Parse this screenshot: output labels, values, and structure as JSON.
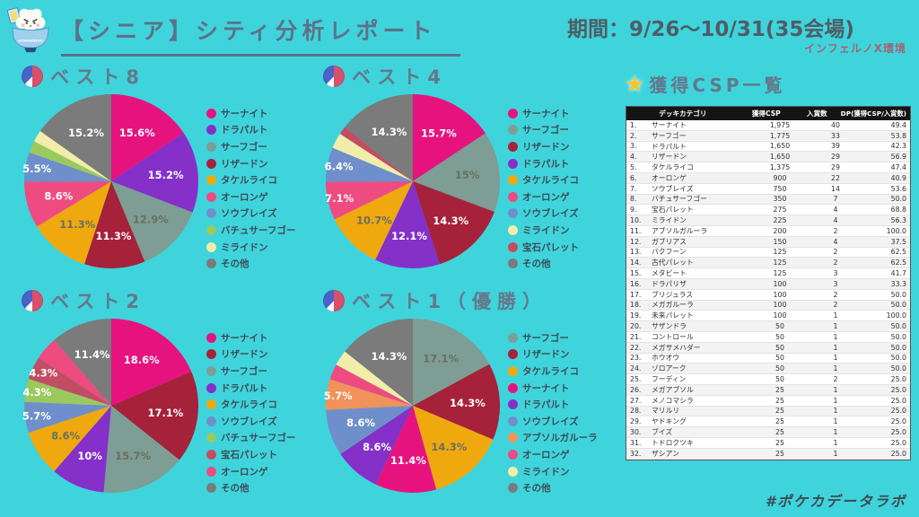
{
  "header": {
    "title": "【シニア】シティ分析レポート",
    "period": "期間：9/26〜10/31(35会場)",
    "environment": "インフェルノX環境"
  },
  "colors": {
    "background": "#3FD4DC",
    "title_text": "#5E7188",
    "period_text": "#4F5D66",
    "environment_text": "#A26472",
    "legend_text": "#3D4B55",
    "table_header_bg": "#141414",
    "table_header_text": "#FFFFFF",
    "footer_text": "#3E4A52",
    "star_icon": "#F6C52E",
    "deck_palette": {
      "サーナイト": "#E6137F",
      "ドラパルト": "#8430C9",
      "サーフゴー": "#7E9D94",
      "リザードン": "#A6213A",
      "タケルライコ": "#EFA90F",
      "オーロンゲ": "#EE4B81",
      "ソウブレイズ": "#6F8FCB",
      "バチュサーフゴー": "#9BC95E",
      "ミライドン": "#F2EDA9",
      "宝石パレット": "#C24D62",
      "アブソルガルーラ": "#F0925A",
      "その他": "#7B7B7B"
    }
  },
  "chart_data": [
    {
      "type": "pie",
      "title": "ベスト8",
      "slices": [
        {
          "name": "サーナイト",
          "value": 15.6,
          "label": "15.6%"
        },
        {
          "name": "ドラパルト",
          "value": 15.2,
          "label": "15.2%"
        },
        {
          "name": "サーフゴー",
          "value": 12.9,
          "label": "12.9%"
        },
        {
          "name": "リザードン",
          "value": 11.3,
          "label": "11.3%"
        },
        {
          "name": "タケルライコ",
          "value": 11.3,
          "label": "11.3%"
        },
        {
          "name": "オーロンゲ",
          "value": 8.6,
          "label": "8.6%"
        },
        {
          "name": "ソウブレイズ",
          "value": 5.5,
          "label": "5.5%"
        },
        {
          "name": "バチュサーフゴー",
          "value": 2.2,
          "label": ""
        },
        {
          "name": "ミライドン",
          "value": 2.2,
          "label": ""
        },
        {
          "name": "その他",
          "value": 15.2,
          "label": "15.2%"
        }
      ]
    },
    {
      "type": "pie",
      "title": "ベスト4",
      "slices": [
        {
          "name": "サーナイト",
          "value": 15.7,
          "label": "15.7%"
        },
        {
          "name": "サーフゴー",
          "value": 15.0,
          "label": "15%"
        },
        {
          "name": "リザードン",
          "value": 14.3,
          "label": "14.3%"
        },
        {
          "name": "ドラパルト",
          "value": 12.1,
          "label": "12.1%"
        },
        {
          "name": "タケルライコ",
          "value": 10.7,
          "label": "10.7%"
        },
        {
          "name": "オーロンゲ",
          "value": 7.1,
          "label": "7.1%"
        },
        {
          "name": "ソウブレイズ",
          "value": 6.4,
          "label": "6.4%"
        },
        {
          "name": "ミライドン",
          "value": 2.9,
          "label": ""
        },
        {
          "name": "宝石パレット",
          "value": 1.5,
          "label": ""
        },
        {
          "name": "その他",
          "value": 14.3,
          "label": "14.3%"
        }
      ]
    },
    {
      "type": "pie",
      "title": "ベスト2",
      "slices": [
        {
          "name": "サーナイト",
          "value": 18.6,
          "label": "18.6%"
        },
        {
          "name": "リザードン",
          "value": 17.1,
          "label": "17.1%"
        },
        {
          "name": "サーフゴー",
          "value": 15.7,
          "label": "15.7%"
        },
        {
          "name": "ドラパルト",
          "value": 10.0,
          "label": "10%"
        },
        {
          "name": "タケルライコ",
          "value": 8.6,
          "label": "8.6%"
        },
        {
          "name": "ソウブレイズ",
          "value": 5.7,
          "label": "5.7%"
        },
        {
          "name": "バチュサーフゴー",
          "value": 4.3,
          "label": "4.3%"
        },
        {
          "name": "宝石パレット",
          "value": 4.3,
          "label": "4.3%"
        },
        {
          "name": "オーロンゲ",
          "value": 4.3,
          "label": ""
        },
        {
          "name": "その他",
          "value": 11.4,
          "label": "11.4%"
        }
      ]
    },
    {
      "type": "pie",
      "title": "ベスト1（優勝）",
      "slices": [
        {
          "name": "サーフゴー",
          "value": 17.1,
          "label": "17.1%"
        },
        {
          "name": "リザードン",
          "value": 14.3,
          "label": "14.3%"
        },
        {
          "name": "タケルライコ",
          "value": 14.3,
          "label": "14.3%"
        },
        {
          "name": "サーナイト",
          "value": 11.4,
          "label": "11.4%"
        },
        {
          "name": "ドラパルト",
          "value": 8.6,
          "label": "8.6%"
        },
        {
          "name": "ソウブレイズ",
          "value": 8.6,
          "label": "8.6%"
        },
        {
          "name": "アブソルガルーラ",
          "value": 5.7,
          "label": "5.7%"
        },
        {
          "name": "オーロンゲ",
          "value": 2.9,
          "label": ""
        },
        {
          "name": "ミライドン",
          "value": 2.9,
          "label": ""
        },
        {
          "name": "その他",
          "value": 14.3,
          "label": "14.3%"
        }
      ]
    },
    {
      "type": "table",
      "title": "獲得CSP一覧",
      "columns": [
        "デッキカテゴリ",
        "獲得CSP",
        "入賞数",
        "DP(獲得CSP/入賞数)"
      ],
      "rows": [
        [
          "1.",
          "サーナイト",
          "1,975",
          "40",
          "49.4"
        ],
        [
          "2.",
          "サーフゴー",
          "1,775",
          "33",
          "53.8"
        ],
        [
          "3.",
          "ドラパルト",
          "1,650",
          "39",
          "42.3"
        ],
        [
          "4.",
          "リザードン",
          "1,650",
          "29",
          "56.9"
        ],
        [
          "5.",
          "タケルライコ",
          "1,375",
          "29",
          "47.4"
        ],
        [
          "6.",
          "オーロンゲ",
          "900",
          "22",
          "40.9"
        ],
        [
          "7.",
          "ソウブレイズ",
          "750",
          "14",
          "53.6"
        ],
        [
          "8.",
          "バチュサーフゴー",
          "350",
          "7",
          "50.0"
        ],
        [
          "9.",
          "宝石パレット",
          "275",
          "4",
          "68.8"
        ],
        [
          "10.",
          "ミライドン",
          "225",
          "4",
          "56.3"
        ],
        [
          "11.",
          "アブソルガルーラ",
          "200",
          "2",
          "100.0"
        ],
        [
          "12.",
          "ガブリアス",
          "150",
          "4",
          "37.5"
        ],
        [
          "13.",
          "バクフーン",
          "125",
          "2",
          "62.5"
        ],
        [
          "14.",
          "古代パレット",
          "125",
          "2",
          "62.5"
        ],
        [
          "15.",
          "メタビート",
          "125",
          "3",
          "41.7"
        ],
        [
          "16.",
          "ドラパリザ",
          "100",
          "3",
          "33.3"
        ],
        [
          "17.",
          "ブリジュラス",
          "100",
          "2",
          "50.0"
        ],
        [
          "18.",
          "メガガルーラ",
          "100",
          "2",
          "50.0"
        ],
        [
          "19.",
          "未来パレット",
          "100",
          "1",
          "100.0"
        ],
        [
          "20.",
          "サザンドラ",
          "50",
          "1",
          "50.0"
        ],
        [
          "21.",
          "コントロール",
          "50",
          "1",
          "50.0"
        ],
        [
          "22.",
          "メガサメハダー",
          "50",
          "1",
          "50.0"
        ],
        [
          "23.",
          "ホウオウ",
          "50",
          "1",
          "50.0"
        ],
        [
          "24.",
          "ゾロアーク",
          "50",
          "1",
          "50.0"
        ],
        [
          "25.",
          "フーディン",
          "50",
          "2",
          "25.0"
        ],
        [
          "26.",
          "メガアブソル",
          "25",
          "1",
          "25.0"
        ],
        [
          "27.",
          "メノコマシラ",
          "25",
          "1",
          "25.0"
        ],
        [
          "28.",
          "マリルリ",
          "25",
          "1",
          "25.0"
        ],
        [
          "29.",
          "ヤドキング",
          "25",
          "1",
          "25.0"
        ],
        [
          "30.",
          "ブイズ",
          "25",
          "1",
          "25.0"
        ],
        [
          "31.",
          "トドロクツキ",
          "25",
          "1",
          "25.0"
        ],
        [
          "32.",
          "ザシアン",
          "25",
          "1",
          "25.0"
        ]
      ]
    }
  ],
  "footer": {
    "hashtag": "#ポケカデータラボ"
  }
}
